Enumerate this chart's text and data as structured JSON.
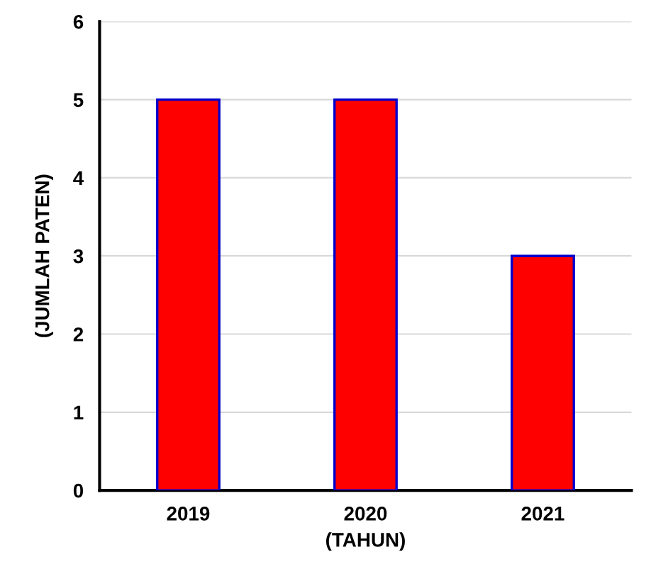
{
  "chart_data": {
    "type": "bar",
    "xlabel": "(TAHUN)",
    "ylabel": "(JUMLAH PATEN)",
    "categories": [
      "2019",
      "2020",
      "2021"
    ],
    "values": [
      5,
      5,
      3
    ],
    "color": "#ff0000",
    "ylim": [
      0,
      6
    ],
    "yticks": [
      0,
      1,
      2,
      3,
      4,
      5,
      6
    ],
    "grid": "y"
  }
}
